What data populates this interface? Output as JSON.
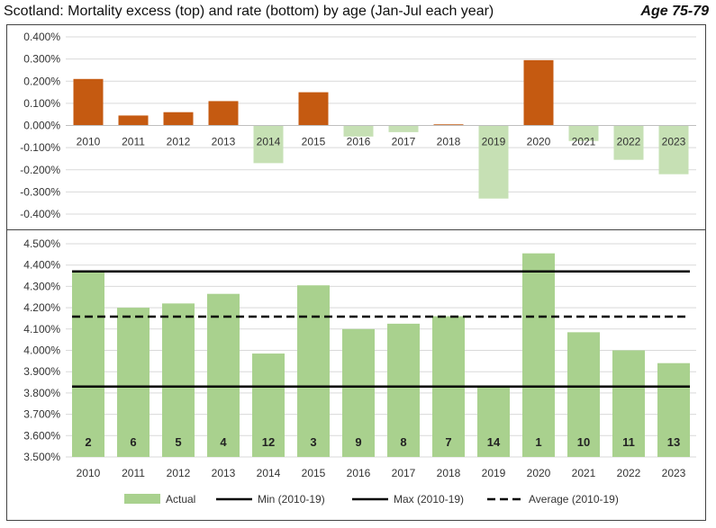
{
  "header": {
    "title": "Scotland: Mortality excess (top) and rate (bottom) by age (Jan-Jul each year)",
    "age_label": "Age 75-79"
  },
  "colors": {
    "positive_excess": "#C55A11",
    "negative_excess": "#C6E0B4",
    "rate_bar": "#A9D18E",
    "reference_line": "#000000",
    "gridline": "#D9D9D9"
  },
  "chart_data": [
    {
      "type": "bar",
      "title": "Mortality excess",
      "categories": [
        "2010",
        "2011",
        "2012",
        "2013",
        "2014",
        "2015",
        "2016",
        "2017",
        "2018",
        "2019",
        "2020",
        "2021",
        "2022",
        "2023"
      ],
      "values": [
        0.21,
        0.045,
        0.06,
        0.11,
        -0.17,
        0.15,
        -0.05,
        -0.03,
        0.005,
        -0.33,
        0.295,
        -0.07,
        -0.155,
        -0.22
      ],
      "unit": "%",
      "ylim": [
        -0.4,
        0.4
      ],
      "yticks": [
        "0.400%",
        "0.300%",
        "0.200%",
        "0.100%",
        "0.000%",
        "-0.100%",
        "-0.200%",
        "-0.300%",
        "-0.400%"
      ],
      "grid": true
    },
    {
      "type": "bar",
      "title": "Mortality rate",
      "categories": [
        "2010",
        "2011",
        "2012",
        "2013",
        "2014",
        "2015",
        "2016",
        "2017",
        "2018",
        "2019",
        "2020",
        "2021",
        "2022",
        "2023"
      ],
      "values": [
        4.37,
        4.2,
        4.22,
        4.265,
        3.985,
        4.305,
        4.1,
        4.125,
        4.16,
        3.83,
        4.455,
        4.085,
        4.0,
        3.94
      ],
      "ranks": [
        "2",
        "6",
        "5",
        "4",
        "12",
        "3",
        "9",
        "8",
        "7",
        "14",
        "1",
        "10",
        "11",
        "13"
      ],
      "unit": "%",
      "ylim": [
        3.5,
        4.5
      ],
      "yticks": [
        "4.500%",
        "4.400%",
        "4.300%",
        "4.200%",
        "4.100%",
        "4.000%",
        "3.900%",
        "3.800%",
        "3.700%",
        "3.600%",
        "3.500%"
      ],
      "grid": true,
      "reference_lines": [
        {
          "name": "Min (2010-19)",
          "value": 3.83,
          "style": "solid"
        },
        {
          "name": "Max (2010-19)",
          "value": 4.37,
          "style": "solid"
        },
        {
          "name": "Average (2010-19)",
          "value": 4.158,
          "style": "dashed"
        }
      ],
      "legend": {
        "placement": "bottom",
        "entries": [
          "Actual",
          "Min (2010-19)",
          "Max (2010-19)",
          "Average (2010-19)"
        ]
      }
    }
  ]
}
